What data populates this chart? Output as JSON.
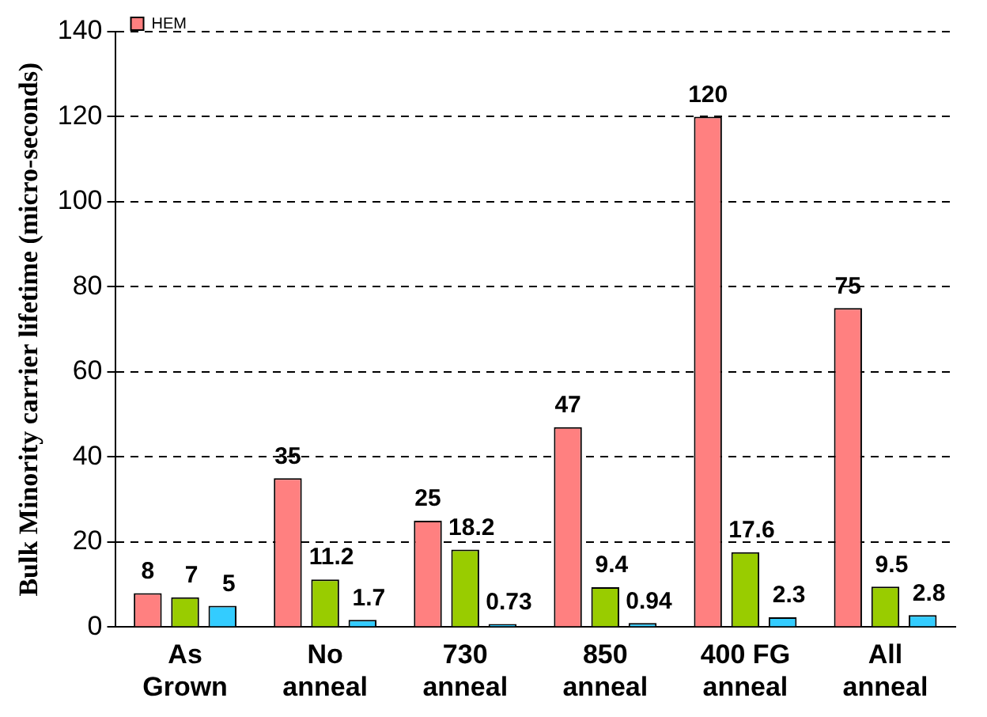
{
  "chart_data": {
    "type": "bar",
    "ylabel": "Bulk Minority carrier lifetime (micro-seconds)",
    "categories": [
      "As Grown",
      "No anneal",
      "730 anneal",
      "850 anneal",
      "400 FG anneal",
      "All anneal"
    ],
    "series": [
      {
        "name": "HEM",
        "color": "#ff8080",
        "values": [
          8,
          35,
          25,
          47,
          120,
          75
        ]
      },
      {
        "color": "#99cc00",
        "values": [
          7,
          11.2,
          18.2,
          9.4,
          17.6,
          9.5
        ]
      },
      {
        "color": "#33ccff",
        "values": [
          5,
          1.7,
          0.73,
          0.94,
          2.3,
          2.8
        ]
      }
    ],
    "ylim": [
      0,
      140
    ],
    "yticks": [
      0,
      20,
      40,
      60,
      80,
      100,
      120,
      140
    ],
    "grid": "y",
    "legend": "top left",
    "data_labels": true
  }
}
